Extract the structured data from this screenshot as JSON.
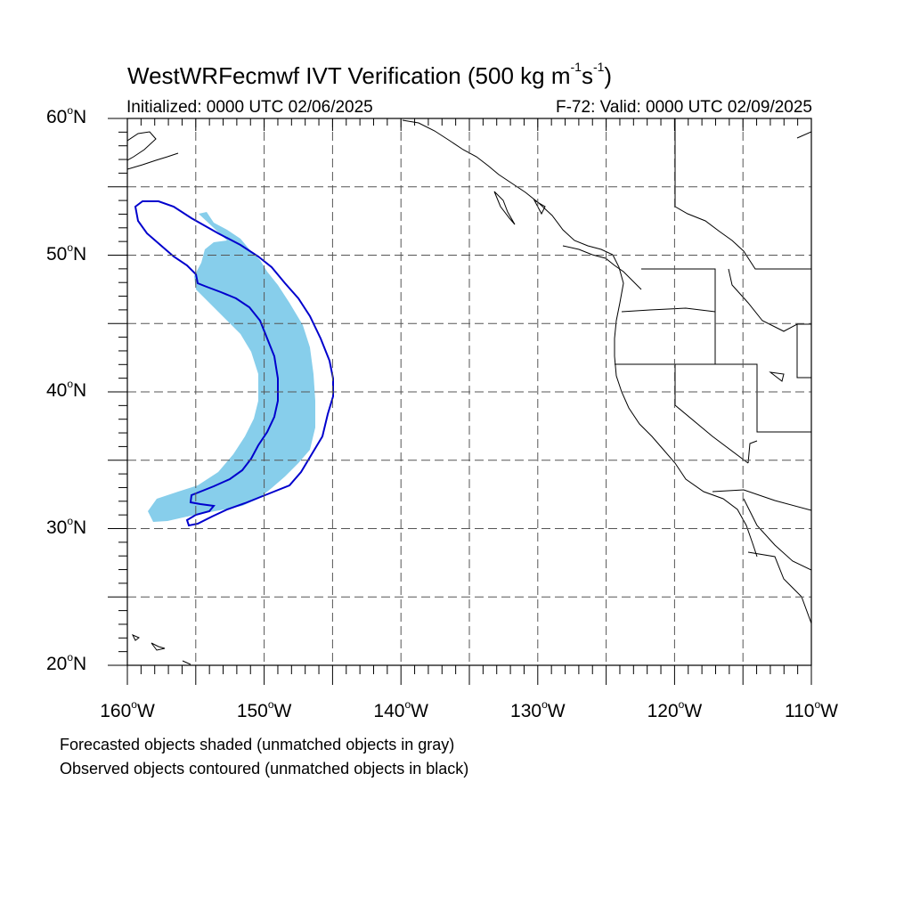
{
  "title": {
    "main": "WestWRFecmwf IVT Verification (500 kg m",
    "exp1": "-1",
    "mid": "s",
    "exp2": "-1",
    "close": ")"
  },
  "subtitle_left": "Initialized: 0000 UTC 02/06/2025",
  "subtitle_right": "F-72: Valid: 0000 UTC 02/09/2025",
  "degree_symbol": "o",
  "lat_labels": [
    {
      "num": "60",
      "hemi": "N"
    },
    {
      "num": "50",
      "hemi": "N"
    },
    {
      "num": "40",
      "hemi": "N"
    },
    {
      "num": "30",
      "hemi": "N"
    },
    {
      "num": "20",
      "hemi": "N"
    }
  ],
  "lon_labels": [
    {
      "num": "160",
      "hemi": "W"
    },
    {
      "num": "150",
      "hemi": "W"
    },
    {
      "num": "140",
      "hemi": "W"
    },
    {
      "num": "130",
      "hemi": "W"
    },
    {
      "num": "120",
      "hemi": "W"
    },
    {
      "num": "110",
      "hemi": "W"
    }
  ],
  "notes": [
    "Forecasted objects shaded (unmatched objects in gray)",
    "Observed objects contoured (unmatched objects in black)"
  ],
  "colors": {
    "forecast_fill": "#87CEEB",
    "observed_contour": "#0000CD",
    "coastline": "#000000",
    "grid": "#555555"
  },
  "map_extent": {
    "lon_min": -160,
    "lon_max": -110,
    "lat_min": 20,
    "lat_max": 60,
    "grid_step": 5
  }
}
